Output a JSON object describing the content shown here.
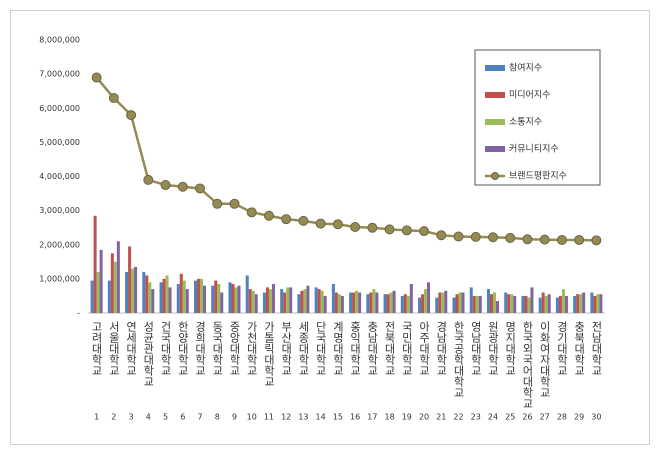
{
  "chart_data": {
    "type": "bar-line",
    "categories": [
      "고려대학교",
      "서울대학교",
      "연세대학교",
      "성균관대학교",
      "건국대학교",
      "한양대학교",
      "경희대학교",
      "동국대학교",
      "중앙대학교",
      "가천대학교",
      "가톨릭대학교",
      "부산대학교",
      "세종대학교",
      "단국대학교",
      "계명대학교",
      "홍익대학교",
      "충남대학교",
      "전북대학교",
      "국민대학교",
      "아주대학교",
      "경남대학교",
      "한국공학대학교",
      "영남대학교",
      "원광대학교",
      "명지대학교",
      "한국외국어대학교",
      "이화여자대학교",
      "경기대학교",
      "충북대학교",
      "전남대학교"
    ],
    "ranks": [
      1,
      2,
      3,
      4,
      5,
      6,
      7,
      8,
      9,
      10,
      11,
      12,
      13,
      14,
      15,
      16,
      17,
      18,
      19,
      20,
      21,
      22,
      23,
      24,
      25,
      26,
      27,
      28,
      29,
      30
    ],
    "series": [
      {
        "name": "참여지수",
        "type": "bar",
        "color": "#4f81bd",
        "values": [
          950000,
          950000,
          1200000,
          1200000,
          900000,
          850000,
          950000,
          800000,
          900000,
          1100000,
          600000,
          700000,
          550000,
          750000,
          850000,
          600000,
          550000,
          550000,
          500000,
          450000,
          450000,
          450000,
          750000,
          700000,
          600000,
          500000,
          450000,
          450000,
          500000,
          600000
        ]
      },
      {
        "name": "미디어지수",
        "type": "bar",
        "color": "#c0504d",
        "values": [
          2850000,
          1750000,
          1950000,
          1100000,
          1000000,
          1150000,
          1000000,
          950000,
          850000,
          700000,
          750000,
          600000,
          650000,
          700000,
          600000,
          600000,
          600000,
          550000,
          550000,
          550000,
          600000,
          550000,
          500000,
          550000,
          550000,
          500000,
          600000,
          500000,
          550000,
          500000
        ]
      },
      {
        "name": "소통지수",
        "type": "bar",
        "color": "#9bbb59",
        "values": [
          1200000,
          1500000,
          1300000,
          900000,
          1100000,
          950000,
          1000000,
          850000,
          750000,
          650000,
          700000,
          750000,
          700000,
          650000,
          550000,
          650000,
          700000,
          600000,
          500000,
          700000,
          600000,
          600000,
          500000,
          600000,
          550000,
          450000,
          500000,
          700000,
          550000,
          550000
        ]
      },
      {
        "name": "커뮤니티지수",
        "type": "bar",
        "color": "#8064a2",
        "values": [
          1850000,
          2100000,
          1350000,
          700000,
          750000,
          700000,
          800000,
          600000,
          800000,
          550000,
          850000,
          750000,
          800000,
          500000,
          500000,
          600000,
          600000,
          650000,
          850000,
          900000,
          650000,
          600000,
          500000,
          350000,
          500000,
          750000,
          550000,
          500000,
          600000,
          550000
        ]
      },
      {
        "name": "브랜드평판지수",
        "type": "line",
        "color": "#948a54",
        "values": [
          6900000,
          6300000,
          5800000,
          3900000,
          3750000,
          3700000,
          3650000,
          3200000,
          3200000,
          2950000,
          2850000,
          2750000,
          2700000,
          2620000,
          2600000,
          2520000,
          2500000,
          2450000,
          2420000,
          2400000,
          2280000,
          2240000,
          2230000,
          2220000,
          2200000,
          2160000,
          2150000,
          2140000,
          2140000,
          2130000
        ]
      }
    ],
    "ylim": [
      0,
      8000000
    ],
    "yticks": [
      {
        "value": 0,
        "label": "-"
      },
      {
        "value": 1000000,
        "label": "1,000,000"
      },
      {
        "value": 2000000,
        "label": "2,000,000"
      },
      {
        "value": 3000000,
        "label": "3,000,000"
      },
      {
        "value": 4000000,
        "label": "4,000,000"
      },
      {
        "value": 5000000,
        "label": "5,000,000"
      },
      {
        "value": 6000000,
        "label": "6,000,000"
      },
      {
        "value": 7000000,
        "label": "7,000,000"
      },
      {
        "value": 8000000,
        "label": "8,000,000"
      }
    ],
    "grid": false,
    "legend": "top-right"
  }
}
